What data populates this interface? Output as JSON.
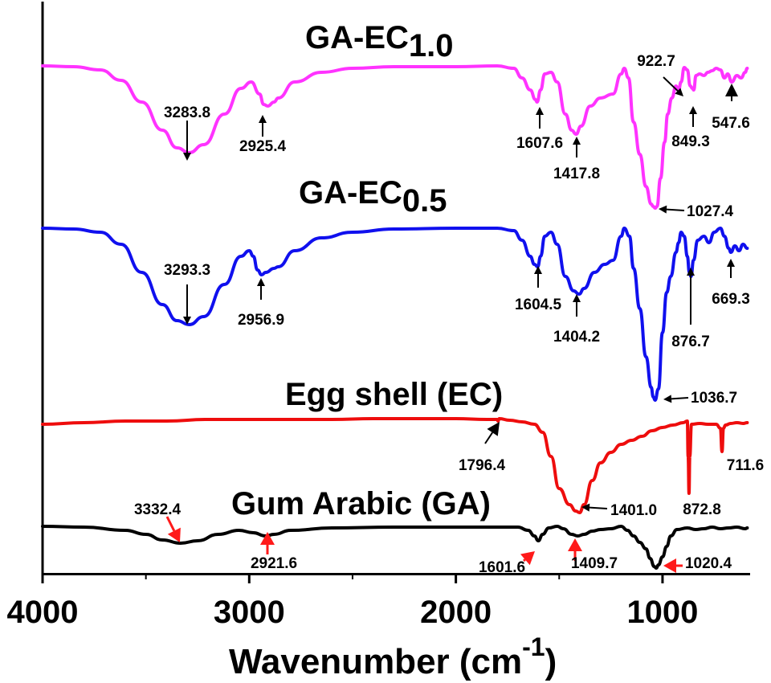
{
  "chart_data": {
    "type": "line",
    "x_axis": {
      "label_main": "Wavenumber (cm",
      "label_sup": "-1",
      "label_end": ")",
      "range": [
        4000,
        580
      ],
      "reversed": true,
      "ticks": [
        4000,
        3000,
        2000,
        1000
      ],
      "tick_labels": [
        "4000",
        "3000",
        "2000",
        "1000"
      ]
    },
    "y_axis": {
      "label": "",
      "ticks_shown": false
    },
    "grid": false,
    "series": [
      {
        "key": "ga_ec_1_0",
        "title_main": "GA-EC",
        "title_sub": "1.0",
        "color": "#ff33ff",
        "baseline": 0,
        "points": [
          [
            4000,
            0
          ],
          [
            3850,
            -1
          ],
          [
            3720,
            -5
          ],
          [
            3620,
            -18
          ],
          [
            3520,
            -45
          ],
          [
            3420,
            -80
          ],
          [
            3350,
            -102
          ],
          [
            3290,
            -108
          ],
          [
            3220,
            -98
          ],
          [
            3120,
            -60
          ],
          [
            3040,
            -28
          ],
          [
            2990,
            -20
          ],
          [
            2950,
            -35
          ],
          [
            2930,
            -48
          ],
          [
            2910,
            -50
          ],
          [
            2880,
            -45
          ],
          [
            2860,
            -40
          ],
          [
            2780,
            -20
          ],
          [
            2650,
            -8
          ],
          [
            2500,
            -3
          ],
          [
            2300,
            -1
          ],
          [
            2000,
            -1
          ],
          [
            1800,
            0
          ],
          [
            1720,
            -3
          ],
          [
            1680,
            -15
          ],
          [
            1640,
            -30
          ],
          [
            1615,
            -42
          ],
          [
            1607,
            -45
          ],
          [
            1590,
            -30
          ],
          [
            1570,
            -10
          ],
          [
            1540,
            -8
          ],
          [
            1510,
            -20
          ],
          [
            1470,
            -60
          ],
          [
            1440,
            -80
          ],
          [
            1418,
            -85
          ],
          [
            1395,
            -75
          ],
          [
            1350,
            -50
          ],
          [
            1300,
            -40
          ],
          [
            1240,
            -35
          ],
          [
            1200,
            -10
          ],
          [
            1185,
            -3
          ],
          [
            1165,
            -15
          ],
          [
            1140,
            -70
          ],
          [
            1110,
            -110
          ],
          [
            1080,
            -150
          ],
          [
            1055,
            -172
          ],
          [
            1045,
            -175
          ],
          [
            1035,
            -177
          ],
          [
            1027,
            -175
          ],
          [
            1010,
            -140
          ],
          [
            990,
            -95
          ],
          [
            975,
            -60
          ],
          [
            955,
            -40
          ],
          [
            935,
            -25
          ],
          [
            922,
            -30
          ],
          [
            910,
            -20
          ],
          [
            895,
            -2
          ],
          [
            880,
            -5
          ],
          [
            866,
            -25
          ],
          [
            855,
            -28
          ],
          [
            849,
            -30
          ],
          [
            838,
            -12
          ],
          [
            820,
            -10
          ],
          [
            800,
            -12
          ],
          [
            780,
            -8
          ],
          [
            760,
            -6
          ],
          [
            740,
            -3
          ],
          [
            720,
            -5
          ],
          [
            700,
            -15
          ],
          [
            685,
            -10
          ],
          [
            665,
            -20
          ],
          [
            640,
            -12
          ],
          [
            620,
            -15
          ],
          [
            600,
            -8
          ],
          [
            590,
            -3
          ]
        ]
      },
      {
        "key": "ga_ec_0_5",
        "title_main": "GA-EC",
        "title_sub": "0.5",
        "color": "#1010ee",
        "baseline": 0,
        "points": [
          [
            4000,
            0
          ],
          [
            3850,
            -1
          ],
          [
            3720,
            -5
          ],
          [
            3620,
            -20
          ],
          [
            3520,
            -55
          ],
          [
            3420,
            -95
          ],
          [
            3350,
            -115
          ],
          [
            3290,
            -120
          ],
          [
            3220,
            -110
          ],
          [
            3120,
            -70
          ],
          [
            3040,
            -35
          ],
          [
            3000,
            -28
          ],
          [
            2980,
            -35
          ],
          [
            2960,
            -52
          ],
          [
            2940,
            -58
          ],
          [
            2920,
            -55
          ],
          [
            2880,
            -50
          ],
          [
            2860,
            -48
          ],
          [
            2780,
            -28
          ],
          [
            2650,
            -12
          ],
          [
            2500,
            -5
          ],
          [
            2300,
            -1
          ],
          [
            2000,
            0
          ],
          [
            1800,
            0
          ],
          [
            1720,
            -3
          ],
          [
            1680,
            -15
          ],
          [
            1640,
            -35
          ],
          [
            1620,
            -45
          ],
          [
            1604,
            -48
          ],
          [
            1590,
            -35
          ],
          [
            1570,
            -10
          ],
          [
            1540,
            -5
          ],
          [
            1510,
            -20
          ],
          [
            1470,
            -60
          ],
          [
            1430,
            -78
          ],
          [
            1404,
            -82
          ],
          [
            1380,
            -75
          ],
          [
            1330,
            -55
          ],
          [
            1280,
            -45
          ],
          [
            1240,
            -40
          ],
          [
            1200,
            -10
          ],
          [
            1185,
            0
          ],
          [
            1160,
            -10
          ],
          [
            1140,
            -50
          ],
          [
            1110,
            -100
          ],
          [
            1080,
            -160
          ],
          [
            1055,
            -198
          ],
          [
            1045,
            -210
          ],
          [
            1036,
            -214
          ],
          [
            1020,
            -200
          ],
          [
            1000,
            -130
          ],
          [
            980,
            -80
          ],
          [
            960,
            -60
          ],
          [
            935,
            -30
          ],
          [
            922,
            -18
          ],
          [
            910,
            -5
          ],
          [
            895,
            -10
          ],
          [
            880,
            -35
          ],
          [
            870,
            -55
          ],
          [
            862,
            -60
          ],
          [
            850,
            -40
          ],
          [
            830,
            -15
          ],
          [
            800,
            -10
          ],
          [
            775,
            -18
          ],
          [
            750,
            -5
          ],
          [
            720,
            0
          ],
          [
            700,
            -10
          ],
          [
            680,
            -25
          ],
          [
            669,
            -30
          ],
          [
            650,
            -22
          ],
          [
            630,
            -28
          ],
          [
            610,
            -20
          ],
          [
            590,
            -25
          ]
        ]
      },
      {
        "key": "egg_shell",
        "title": "Egg shell (EC)",
        "color": "#ee0d0d",
        "baseline": 0,
        "points": [
          [
            4000,
            0
          ],
          [
            3800,
            2
          ],
          [
            3600,
            4
          ],
          [
            3400,
            4
          ],
          [
            3200,
            6
          ],
          [
            3000,
            6
          ],
          [
            2800,
            6
          ],
          [
            2600,
            6
          ],
          [
            2400,
            7
          ],
          [
            2200,
            7
          ],
          [
            2000,
            7
          ],
          [
            1850,
            6
          ],
          [
            1800,
            6
          ],
          [
            1796,
            4
          ],
          [
            1790,
            7
          ],
          [
            1740,
            5
          ],
          [
            1680,
            3
          ],
          [
            1620,
            0
          ],
          [
            1580,
            -10
          ],
          [
            1540,
            -40
          ],
          [
            1500,
            -80
          ],
          [
            1450,
            -100
          ],
          [
            1420,
            -108
          ],
          [
            1401,
            -110
          ],
          [
            1380,
            -100
          ],
          [
            1340,
            -70
          ],
          [
            1300,
            -48
          ],
          [
            1250,
            -35
          ],
          [
            1200,
            -25
          ],
          [
            1150,
            -20
          ],
          [
            1100,
            -15
          ],
          [
            1050,
            -8
          ],
          [
            1000,
            -4
          ],
          [
            950,
            -1
          ],
          [
            900,
            2
          ],
          [
            880,
            4
          ],
          [
            876,
            -40
          ],
          [
            872,
            -86
          ],
          [
            868,
            -40
          ],
          [
            860,
            0
          ],
          [
            820,
            1
          ],
          [
            780,
            0
          ],
          [
            740,
            0
          ],
          [
            720,
            -5
          ],
          [
            712,
            -34
          ],
          [
            705,
            -5
          ],
          [
            695,
            -1
          ],
          [
            670,
            1
          ],
          [
            640,
            2
          ],
          [
            610,
            1
          ],
          [
            590,
            2
          ]
        ]
      },
      {
        "key": "gum_arabic",
        "title": "Gum Arabic (GA)",
        "color": "#000000",
        "baseline": 0,
        "points": [
          [
            4000,
            0
          ],
          [
            3800,
            -1
          ],
          [
            3600,
            -5
          ],
          [
            3500,
            -10
          ],
          [
            3420,
            -17
          ],
          [
            3332,
            -21
          ],
          [
            3250,
            -18
          ],
          [
            3150,
            -10
          ],
          [
            3050,
            -5
          ],
          [
            2980,
            -8
          ],
          [
            2921,
            -12
          ],
          [
            2880,
            -10
          ],
          [
            2800,
            -5
          ],
          [
            2600,
            -2
          ],
          [
            2300,
            -1
          ],
          [
            2000,
            -1
          ],
          [
            1700,
            -1
          ],
          [
            1650,
            -5
          ],
          [
            1620,
            -12
          ],
          [
            1601,
            -18
          ],
          [
            1580,
            -10
          ],
          [
            1550,
            -2
          ],
          [
            1510,
            0
          ],
          [
            1480,
            -3
          ],
          [
            1440,
            -10
          ],
          [
            1410,
            -12
          ],
          [
            1380,
            -10
          ],
          [
            1340,
            -6
          ],
          [
            1300,
            -4
          ],
          [
            1250,
            -3
          ],
          [
            1200,
            0
          ],
          [
            1170,
            -5
          ],
          [
            1140,
            -12
          ],
          [
            1110,
            -20
          ],
          [
            1080,
            -28
          ],
          [
            1060,
            -40
          ],
          [
            1040,
            -50
          ],
          [
            1030,
            -52
          ],
          [
            1020,
            -48
          ],
          [
            1000,
            -38
          ],
          [
            980,
            -25
          ],
          [
            960,
            -12
          ],
          [
            930,
            -4
          ],
          [
            880,
            -2
          ],
          [
            840,
            -4
          ],
          [
            800,
            -3
          ],
          [
            760,
            -1
          ],
          [
            720,
            -3
          ],
          [
            680,
            -2
          ],
          [
            640,
            -1
          ],
          [
            600,
            -3
          ],
          [
            590,
            -2
          ]
        ]
      }
    ],
    "annotations": [
      {
        "series": "ga_ec_1_0",
        "text": "3283.8",
        "x": 3283.8
      },
      {
        "series": "ga_ec_1_0",
        "text": "2925.4",
        "x": 2925.4
      },
      {
        "series": "ga_ec_1_0",
        "text": "1607.6",
        "x": 1607.6
      },
      {
        "series": "ga_ec_1_0",
        "text": "1417.8",
        "x": 1417.8
      },
      {
        "series": "ga_ec_1_0",
        "text": "1027.4",
        "x": 1027.4
      },
      {
        "series": "ga_ec_1_0",
        "text": "922.7",
        "x": 922.7
      },
      {
        "series": "ga_ec_1_0",
        "text": "849.3",
        "x": 849.3
      },
      {
        "series": "ga_ec_1_0",
        "text": "547.6",
        "x": 547.6
      },
      {
        "series": "ga_ec_0_5",
        "text": "3293.3",
        "x": 3293.3
      },
      {
        "series": "ga_ec_0_5",
        "text": "2956.9",
        "x": 2956.9
      },
      {
        "series": "ga_ec_0_5",
        "text": "1604.5",
        "x": 1604.5
      },
      {
        "series": "ga_ec_0_5",
        "text": "1404.2",
        "x": 1404.2
      },
      {
        "series": "ga_ec_0_5",
        "text": "1036.7",
        "x": 1036.7
      },
      {
        "series": "ga_ec_0_5",
        "text": "876.7",
        "x": 876.7
      },
      {
        "series": "ga_ec_0_5",
        "text": "669.3",
        "x": 669.3
      },
      {
        "series": "egg_shell",
        "text": "1796.4",
        "x": 1796.4
      },
      {
        "series": "egg_shell",
        "text": "1401.0",
        "x": 1401.0
      },
      {
        "series": "egg_shell",
        "text": "872.8",
        "x": 872.8
      },
      {
        "series": "egg_shell",
        "text": "711.6",
        "x": 711.6
      },
      {
        "series": "gum_arabic",
        "text": "3332.4",
        "x": 3332.4
      },
      {
        "series": "gum_arabic",
        "text": "2921.6",
        "x": 2921.6
      },
      {
        "series": "gum_arabic",
        "text": "1601.6",
        "x": 1601.6
      },
      {
        "series": "gum_arabic",
        "text": "1409.7",
        "x": 1409.7
      },
      {
        "series": "gum_arabic",
        "text": "1020.4",
        "x": 1020.4
      }
    ]
  }
}
